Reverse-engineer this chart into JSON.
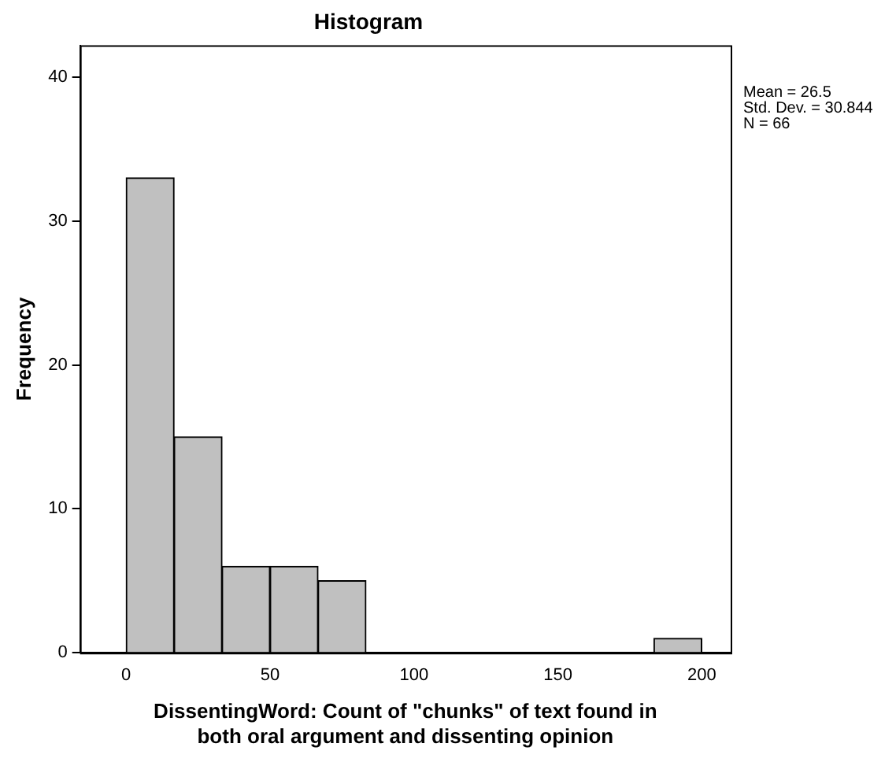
{
  "chart_data": {
    "type": "histogram",
    "title": "Histogram",
    "xlabel": "DissentingWord: Count of \"chunks\" of text found in\nboth oral argument and dissenting opinion",
    "ylabel": "Frequency",
    "bins": [
      0,
      16.7,
      33.3,
      50,
      66.7,
      83.3,
      100,
      116.7,
      133.3,
      150,
      166.7,
      183.3,
      200
    ],
    "values": [
      33,
      15,
      6,
      6,
      5,
      0,
      0,
      0,
      0,
      0,
      0,
      1
    ],
    "color": "#c0c0c0",
    "xlim": [
      -16,
      210
    ],
    "xticks": [
      0,
      50,
      100,
      150,
      200
    ],
    "ylim": [
      0,
      42.2
    ],
    "yticks": [
      0,
      10,
      20,
      30,
      40
    ],
    "grid": false,
    "legend": false,
    "annotations": [
      "Mean = 26.5",
      "Std. Dev. = 30.844",
      "N = 66"
    ]
  }
}
